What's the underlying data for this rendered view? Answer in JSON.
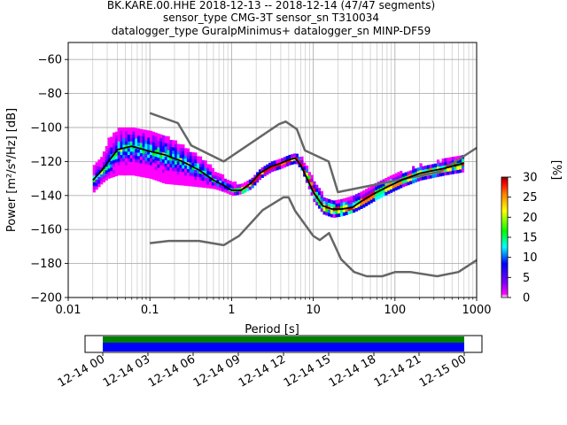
{
  "chart_data": {
    "type": "heatmap",
    "title_lines": [
      "BK.KARE.00.HHE   2018-12-13 -- 2018-12-14  (47/47 segments)",
      "sensor_type CMG-3T sensor_sn T310034",
      "datalogger_type GuralpMinimus+ datalogger_sn MINP-DF59"
    ],
    "xlabel": "Period [s]",
    "ylabel": "Power [m²/s⁴/Hz] [dB]",
    "x_scale": "log",
    "xlim": [
      0.01,
      1000
    ],
    "ylim": [
      -200,
      -50
    ],
    "x_ticks": [
      0.01,
      0.1,
      1,
      10,
      100,
      1000
    ],
    "x_tick_labels": [
      "0.01",
      "0.1",
      "1",
      "10",
      "100",
      "1000"
    ],
    "y_ticks": [
      -60,
      -80,
      -100,
      -120,
      -140,
      -160,
      -180,
      -200
    ],
    "y_tick_labels": [
      "−60",
      "−80",
      "−100",
      "−120",
      "−140",
      "−160",
      "−180",
      "−200"
    ],
    "grid": true,
    "colorbar": {
      "label": "[%]",
      "range": [
        0,
        30
      ],
      "ticks": [
        0,
        5,
        10,
        15,
        20,
        25,
        30
      ],
      "tick_labels": [
        "0",
        "5",
        "10",
        "15",
        "20",
        "25",
        "30"
      ],
      "colors": [
        "#ffffff",
        "#ff00ff",
        "#8000ff",
        "#0000ff",
        "#00ffff",
        "#00ff00",
        "#ffff00",
        "#ff8000",
        "#ff0000",
        "#800000"
      ]
    },
    "noise_models": [
      {
        "role": "high-noise-model",
        "color": "#666666",
        "x": [
          0.1,
          0.22,
          0.32,
          0.8,
          3.8,
          4.6,
          6.3,
          7.9,
          15.4,
          20,
          354.8,
          1000
        ],
        "y": [
          -91.5,
          -97.4,
          -110.5,
          -120,
          -98,
          -96.5,
          -101,
          -113.5,
          -120,
          -138,
          -126,
          -112
        ]
      },
      {
        "role": "low-noise-model",
        "color": "#666666",
        "x": [
          0.1,
          0.17,
          0.4,
          0.8,
          1.24,
          2.4,
          4.3,
          5,
          6,
          10,
          12,
          15.6,
          21.9,
          31.6,
          45,
          70,
          101,
          154,
          328,
          600,
          1000
        ],
        "y": [
          -168,
          -166.7,
          -166.7,
          -169.2,
          -163.7,
          -148.6,
          -141.1,
          -141.1,
          -149,
          -163.8,
          -166.2,
          -162.1,
          -177.5,
          -185,
          -187.5,
          -187.5,
          -185,
          -185,
          -187.5,
          -185,
          -178
        ]
      }
    ],
    "mean_psd": {
      "color": "#000000",
      "x": [
        0.02,
        0.025,
        0.03,
        0.04,
        0.06,
        0.1,
        0.15,
        0.25,
        0.4,
        0.6,
        0.8,
        1.0,
        1.3,
        1.7,
        2.2,
        3.0,
        4.0,
        5.0,
        6.0,
        7.0,
        8.0,
        10,
        13,
        17,
        22,
        30,
        40,
        55,
        80,
        120,
        200,
        400,
        700
      ],
      "y": [
        -131,
        -126,
        -121,
        -113,
        -111,
        -114,
        -116,
        -120,
        -125,
        -131,
        -134,
        -137,
        -137,
        -133,
        -127,
        -123,
        -121,
        -119,
        -118,
        -122,
        -128,
        -138,
        -146,
        -148,
        -148,
        -147,
        -143,
        -139,
        -135,
        -131,
        -127,
        -124,
        -121
      ]
    },
    "density_band": {
      "x": [
        0.02,
        0.025,
        0.03,
        0.04,
        0.06,
        0.1,
        0.15,
        0.25,
        0.4,
        0.6,
        0.8,
        1.0,
        1.3,
        1.7,
        2.2,
        3.0,
        4.0,
        5.0,
        6.0,
        7.0,
        8.0,
        10,
        13,
        17,
        22,
        30,
        40,
        55,
        80,
        120,
        200,
        400,
        700
      ],
      "low": [
        -138,
        -133,
        -130,
        -128,
        -128,
        -130,
        -133,
        -134,
        -135,
        -136,
        -138,
        -140,
        -139,
        -136,
        -130,
        -126,
        -124,
        -122,
        -121,
        -125,
        -132,
        -144,
        -151,
        -153,
        -152,
        -150,
        -147,
        -143,
        -139,
        -135,
        -131,
        -128,
        -126
      ],
      "high": [
        -122,
        -118,
        -108,
        -102,
        -101,
        -104,
        -106,
        -112,
        -118,
        -126,
        -130,
        -133,
        -134,
        -130,
        -125,
        -121,
        -119,
        -117,
        -116,
        -119,
        -124,
        -132,
        -141,
        -143,
        -142,
        -141,
        -138,
        -133,
        -130,
        -127,
        -123,
        -120,
        -117
      ]
    },
    "timeline": {
      "range_hours": [
        0,
        24
      ],
      "tick_labels": [
        "12-14 00",
        "12-14 03",
        "12-14 06",
        "12-14 09",
        "12-14 12",
        "12-14 15",
        "12-14 18",
        "12-14 21",
        "12-15 00"
      ],
      "coverage_colors": {
        "top": "#008000",
        "bottom": "#0000ff"
      }
    }
  }
}
